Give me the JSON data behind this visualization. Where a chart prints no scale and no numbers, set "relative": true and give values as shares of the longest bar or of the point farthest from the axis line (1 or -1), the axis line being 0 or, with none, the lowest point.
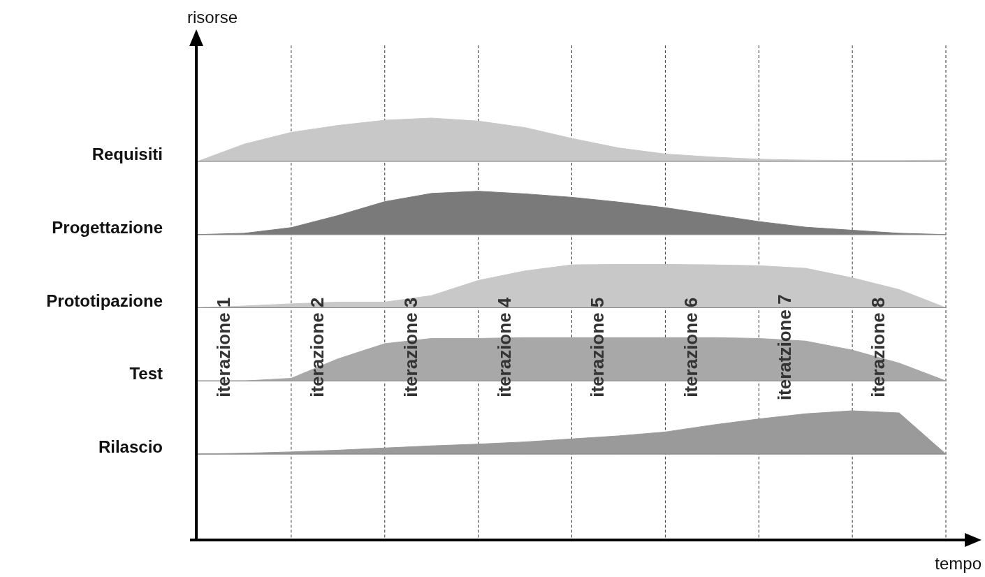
{
  "chart_data": [
    {
      "type": "area",
      "ylabel": "Requisiti",
      "relative": true,
      "annotations": [
        "risorse",
        "iterazione 1",
        "iterazione 2",
        "iterazione 3",
        "iterazione 4",
        "iterazione 5",
        "iterazione 6",
        "iteratzione 7",
        "iterazione 8"
      ],
      "categories": [
        null,
        null,
        null,
        null,
        null,
        null,
        null,
        null,
        null,
        null,
        null,
        null,
        null,
        null,
        null,
        null,
        null
      ],
      "grid": "x",
      "series": [
        {
          "color": "#c8c8c8",
          "values": [
            0,
            0.4,
            0.67,
            0.83,
            0.95,
            1,
            0.93,
            0.78,
            0.53,
            0.31,
            0.17,
            0.1,
            0.05,
            0.03,
            0.02,
            0.02,
            0.03
          ]
        }
      ]
    },
    {
      "type": "area",
      "ylabel": "Progettazione",
      "relative": true,
      "categories": [
        null,
        null,
        null,
        null,
        null,
        null,
        null,
        null,
        null,
        null,
        null,
        null,
        null,
        null,
        null,
        null,
        null
      ],
      "grid": "x",
      "series": [
        {
          "color": "#7a7a7a",
          "values": [
            0,
            0.03,
            0.16,
            0.44,
            0.76,
            0.95,
            1,
            0.94,
            0.86,
            0.75,
            0.62,
            0.46,
            0.3,
            0.17,
            0.1,
            0.03,
            0
          ]
        }
      ]
    },
    {
      "type": "area",
      "ylabel": "Prototipazione",
      "relative": true,
      "categories": [
        null,
        null,
        null,
        null,
        null,
        null,
        null,
        null,
        null,
        null,
        null,
        null,
        null,
        null,
        null,
        null,
        null
      ],
      "grid": "x",
      "series": [
        {
          "color": "#c8c8c8",
          "values": [
            0,
            0.04,
            0.09,
            0.13,
            0.13,
            0.28,
            0.63,
            0.85,
            0.99,
            1,
            1,
            0.99,
            0.97,
            0.91,
            0.69,
            0.42,
            0
          ]
        }
      ]
    },
    {
      "type": "area",
      "ylabel": "Test",
      "relative": true,
      "categories": [
        null,
        null,
        null,
        null,
        null,
        null,
        null,
        null,
        null,
        null,
        null,
        null,
        null,
        null,
        null,
        null,
        null
      ],
      "grid": "x",
      "series": [
        {
          "color": "#a8a8a8",
          "values": [
            0,
            0,
            0.06,
            0.51,
            0.86,
            0.98,
            0.98,
            1,
            1,
            1,
            1,
            1,
            0.98,
            0.92,
            0.71,
            0.41,
            0
          ]
        }
      ]
    },
    {
      "type": "area",
      "ylabel": "Rilascio",
      "relative": true,
      "xlabel": "tempo",
      "categories": [
        null,
        null,
        null,
        null,
        null,
        null,
        null,
        null,
        null,
        null,
        null,
        null,
        null,
        null,
        null,
        null,
        null
      ],
      "grid": "x",
      "series": [
        {
          "color": "#9a9a9a",
          "values": [
            0,
            0.02,
            0.05,
            0.09,
            0.14,
            0.19,
            0.23,
            0.28,
            0.35,
            0.42,
            0.51,
            0.67,
            0.81,
            0.93,
            1,
            0.95,
            0
          ]
        }
      ]
    }
  ]
}
